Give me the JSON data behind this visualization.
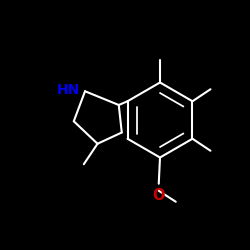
{
  "background_color": "#000000",
  "bond_color": "#000000",
  "N_color": "#0000ee",
  "O_color": "#cc0000",
  "line_width": 1.5,
  "font_size": 10,
  "fig_bg": "#000000"
}
